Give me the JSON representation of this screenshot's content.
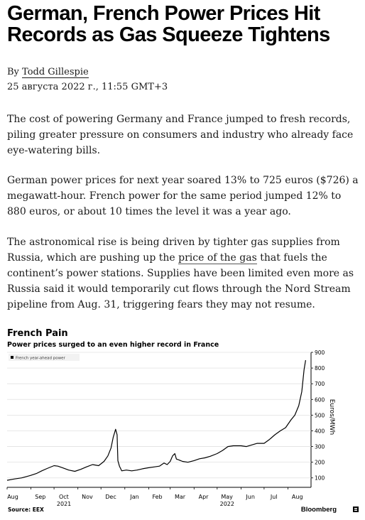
{
  "article": {
    "headline": "German, French Power Prices Hit Records as Gas Squeeze Tightens",
    "byline_prefix": "By ",
    "author": "Todd Gillespie",
    "dateline": "25 августа 2022 г., 11:55 GMT+3",
    "p1": "The cost of powering Germany and France jumped to fresh records, piling greater pressure on consumers and industry who already face eye-watering bills.",
    "p2": "German power prices for next year soared 13% to 725 euros ($726) a megawatt-hour. French power for the same period jumped 12% to 880 euros, or about 10 times the level it was a year ago.",
    "p3_before": "The astronomical rise is being driven by tighter gas supplies from Russia, which are pushing up the ",
    "p3_link": "price of the gas",
    "p3_after": " that fuels the continent’s power stations. Supplies have been limited even more as Russia said it would temporarily cut flows through the Nord Stream pipeline from Aug. 31, triggering fears they may not resume."
  },
  "chart_data": {
    "type": "line",
    "title": "French Pain",
    "subtitle": "Power prices surged to an even higher record in France",
    "ylabel": "Euros/MWh",
    "ylim": [
      40,
      900
    ],
    "yticks": [
      100,
      200,
      300,
      400,
      500,
      600,
      700,
      800,
      900
    ],
    "y_axis_position": "right",
    "grid": "horizontal",
    "legend": {
      "placement": "top-left",
      "entries": [
        "French year-ahead power"
      ]
    },
    "month_ticks": [
      {
        "date": "2021-08-01",
        "label": "Aug"
      },
      {
        "date": "2021-09-01",
        "label": "Sep"
      },
      {
        "date": "2021-10-01",
        "label": "Oct"
      },
      {
        "date": "2021-11-01",
        "label": "Nov"
      },
      {
        "date": "2021-12-01",
        "label": "Dec"
      },
      {
        "date": "2022-01-01",
        "label": "Jan"
      },
      {
        "date": "2022-02-01",
        "label": "Feb"
      },
      {
        "date": "2022-03-01",
        "label": "Mar"
      },
      {
        "date": "2022-04-01",
        "label": "Apr"
      },
      {
        "date": "2022-05-01",
        "label": "May"
      },
      {
        "date": "2022-06-01",
        "label": "Jun"
      },
      {
        "date": "2022-07-01",
        "label": "Jul"
      },
      {
        "date": "2022-08-01",
        "label": "Aug"
      }
    ],
    "year_labels": [
      {
        "date": "2021-10-01",
        "label": "2021"
      },
      {
        "date": "2022-05-01",
        "label": "2022"
      }
    ],
    "series": [
      {
        "name": "French year-ahead power",
        "color": "#000000",
        "x": [
          "2021-08-01",
          "2021-08-10",
          "2021-08-20",
          "2021-08-31",
          "2021-09-08",
          "2021-09-15",
          "2021-09-22",
          "2021-10-01",
          "2021-10-06",
          "2021-10-12",
          "2021-10-20",
          "2021-10-28",
          "2021-11-05",
          "2021-11-12",
          "2021-11-20",
          "2021-11-28",
          "2021-12-05",
          "2021-12-10",
          "2021-12-14",
          "2021-12-17",
          "2021-12-20",
          "2021-12-22",
          "2021-12-23",
          "2021-12-25",
          "2021-12-28",
          "2022-01-03",
          "2022-01-10",
          "2022-01-17",
          "2022-01-24",
          "2022-02-01",
          "2022-02-08",
          "2022-02-15",
          "2022-02-21",
          "2022-02-25",
          "2022-03-01",
          "2022-03-04",
          "2022-03-07",
          "2022-03-09",
          "2022-03-12",
          "2022-03-17",
          "2022-03-24",
          "2022-04-01",
          "2022-04-08",
          "2022-04-15",
          "2022-04-22",
          "2022-05-01",
          "2022-05-08",
          "2022-05-15",
          "2022-05-22",
          "2022-06-01",
          "2022-06-08",
          "2022-06-15",
          "2022-06-22",
          "2022-07-01",
          "2022-07-08",
          "2022-07-15",
          "2022-07-22",
          "2022-07-29",
          "2022-08-05",
          "2022-08-10",
          "2022-08-15",
          "2022-08-19",
          "2022-08-22",
          "2022-08-24"
        ],
        "values": [
          85,
          93,
          100,
          115,
          128,
          145,
          160,
          178,
          175,
          165,
          150,
          142,
          155,
          170,
          185,
          178,
          205,
          240,
          290,
          360,
          410,
          375,
          210,
          175,
          145,
          150,
          145,
          150,
          158,
          165,
          170,
          175,
          195,
          185,
          205,
          240,
          255,
          220,
          215,
          205,
          200,
          210,
          222,
          228,
          238,
          255,
          275,
          300,
          305,
          305,
          300,
          310,
          320,
          320,
          345,
          375,
          400,
          420,
          470,
          500,
          560,
          650,
          790,
          850
        ]
      }
    ]
  },
  "source_label": "Source: EEX",
  "brand": "Bloomberg"
}
